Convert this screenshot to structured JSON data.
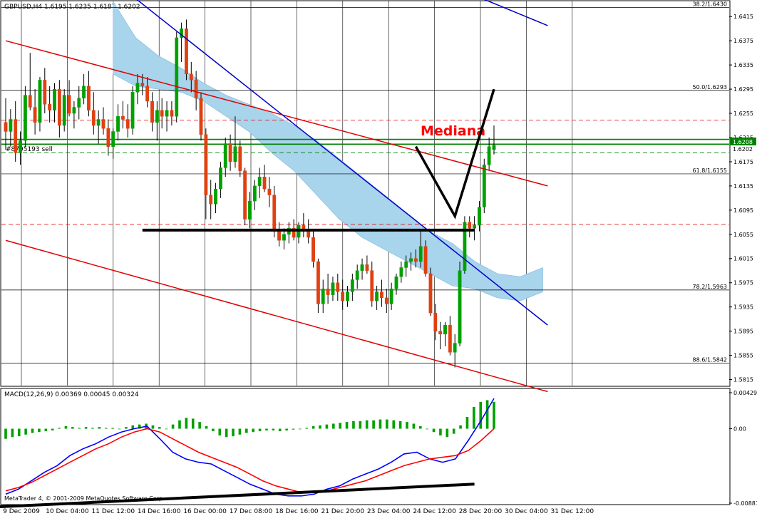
{
  "window": {
    "title": "GBPUSD,H4  1.6195 1.6235 1.6187 1.6202",
    "watermark": "MetaTrader 4, © 2001-2009 MetaQuotes Software Corp."
  },
  "colors": {
    "bull": "#00a000",
    "bear": "#e04010",
    "cloud": "#a8d4ec",
    "channel": "#e00000",
    "trend": "#0000c8",
    "fib": "#000000",
    "hline_green": "#008000",
    "macd_line": "#0000ff",
    "signal_line": "#ff0000",
    "annotation": "#ff0000"
  },
  "chart_data": [
    {
      "type": "line",
      "title": "GBPUSD,H4",
      "ylim": [
        1.5805,
        1.644
      ],
      "ticks": [
        "1.6415",
        "1.6375",
        "1.6335",
        "1.6295",
        "1.6255",
        "1.6215",
        "1.6175",
        "1.6135",
        "1.6095",
        "1.6055",
        "1.6015",
        "1.5975",
        "1.5935",
        "1.5895",
        "1.5855",
        "1.5815"
      ],
      "xticks": [
        "9 Dec 2009",
        "10 Dec 04:00",
        "11 Dec 12:00",
        "14 Dec 16:00",
        "16 Dec 00:00",
        "17 Dec 08:00",
        "18 Dec 16:00",
        "21 Dec 20:00",
        "23 Dec 04:00",
        "24 Dec 12:00",
        "28 Dec 20:00",
        "30 Dec 04:00",
        "31 Dec 12:00"
      ],
      "candles": [
        [
          1.624,
          1.628,
          1.6195,
          1.6225
        ],
        [
          1.6225,
          1.6262,
          1.62,
          1.6245
        ],
        [
          1.6245,
          1.6275,
          1.6175,
          1.619
        ],
        [
          1.619,
          1.6225,
          1.617,
          1.621
        ],
        [
          1.621,
          1.63,
          1.62,
          1.6285
        ],
        [
          1.6285,
          1.6355,
          1.626,
          1.6265
        ],
        [
          1.6265,
          1.6295,
          1.622,
          1.624
        ],
        [
          1.624,
          1.6315,
          1.6225,
          1.631
        ],
        [
          1.631,
          1.633,
          1.6255,
          1.627
        ],
        [
          1.627,
          1.63,
          1.624,
          1.626
        ],
        [
          1.626,
          1.6305,
          1.624,
          1.6295
        ],
        [
          1.6295,
          1.631,
          1.6215,
          1.6235
        ],
        [
          1.6235,
          1.6295,
          1.6225,
          1.6285
        ],
        [
          1.6285,
          1.631,
          1.625,
          1.6255
        ],
        [
          1.6255,
          1.6275,
          1.623,
          1.6265
        ],
        [
          1.6265,
          1.63,
          1.6245,
          1.628
        ],
        [
          1.628,
          1.632,
          1.627,
          1.63
        ],
        [
          1.63,
          1.6325,
          1.625,
          1.626
        ],
        [
          1.626,
          1.629,
          1.622,
          1.6235
        ],
        [
          1.6235,
          1.626,
          1.6205,
          1.6245
        ],
        [
          1.6245,
          1.6265,
          1.622,
          1.623
        ],
        [
          1.623,
          1.6245,
          1.6185,
          1.62
        ],
        [
          1.62,
          1.623,
          1.618,
          1.6225
        ],
        [
          1.6225,
          1.627,
          1.621,
          1.625
        ],
        [
          1.625,
          1.6275,
          1.623,
          1.6245
        ],
        [
          1.6245,
          1.627,
          1.6215,
          1.623
        ],
        [
          1.623,
          1.63,
          1.622,
          1.629
        ],
        [
          1.629,
          1.632,
          1.627,
          1.6305
        ],
        [
          1.6305,
          1.632,
          1.6285,
          1.63
        ],
        [
          1.63,
          1.6315,
          1.6265,
          1.6275
        ],
        [
          1.6275,
          1.629,
          1.6225,
          1.624
        ],
        [
          1.624,
          1.6275,
          1.621,
          1.626
        ],
        [
          1.626,
          1.628,
          1.623,
          1.625
        ],
        [
          1.625,
          1.6275,
          1.6225,
          1.626
        ],
        [
          1.626,
          1.6275,
          1.6235,
          1.625
        ],
        [
          1.625,
          1.639,
          1.624,
          1.638
        ],
        [
          1.638,
          1.6405,
          1.634,
          1.6395
        ],
        [
          1.6395,
          1.641,
          1.631,
          1.632
        ],
        [
          1.632,
          1.634,
          1.629,
          1.631
        ],
        [
          1.631,
          1.6325,
          1.626,
          1.628
        ],
        [
          1.628,
          1.629,
          1.621,
          1.622
        ],
        [
          1.622,
          1.623,
          1.608,
          1.612
        ],
        [
          1.612,
          1.6145,
          1.608,
          1.6105
        ],
        [
          1.6105,
          1.614,
          1.609,
          1.613
        ],
        [
          1.613,
          1.6175,
          1.6115,
          1.6165
        ],
        [
          1.6165,
          1.6215,
          1.615,
          1.6205
        ],
        [
          1.6205,
          1.622,
          1.616,
          1.6175
        ],
        [
          1.6175,
          1.625,
          1.6165,
          1.62
        ],
        [
          1.62,
          1.621,
          1.615,
          1.616
        ],
        [
          1.616,
          1.6165,
          1.607,
          1.608
        ],
        [
          1.608,
          1.6125,
          1.6065,
          1.611
        ],
        [
          1.611,
          1.6145,
          1.6095,
          1.6135
        ],
        [
          1.6135,
          1.6165,
          1.6115,
          1.615
        ],
        [
          1.615,
          1.617,
          1.6125,
          1.613
        ],
        [
          1.613,
          1.615,
          1.61,
          1.612
        ],
        [
          1.612,
          1.6135,
          1.605,
          1.606
        ],
        [
          1.606,
          1.6075,
          1.6035,
          1.6045
        ],
        [
          1.6045,
          1.6065,
          1.603,
          1.6055
        ],
        [
          1.6055,
          1.6075,
          1.604,
          1.6065
        ],
        [
          1.6065,
          1.608,
          1.6045,
          1.605
        ],
        [
          1.605,
          1.6075,
          1.604,
          1.607
        ],
        [
          1.607,
          1.609,
          1.605,
          1.606
        ],
        [
          1.606,
          1.608,
          1.604,
          1.605
        ],
        [
          1.605,
          1.606,
          1.6,
          1.601
        ],
        [
          1.601,
          1.6015,
          1.5925,
          1.594
        ],
        [
          1.594,
          1.598,
          1.5925,
          1.5965
        ],
        [
          1.5965,
          1.599,
          1.594,
          1.5955
        ],
        [
          1.5955,
          1.5985,
          1.5945,
          1.5975
        ],
        [
          1.5975,
          1.599,
          1.5945,
          1.596
        ],
        [
          1.596,
          1.598,
          1.593,
          1.5945
        ],
        [
          1.5945,
          1.597,
          1.5935,
          1.596
        ],
        [
          1.596,
          1.599,
          1.5945,
          1.598
        ],
        [
          1.598,
          1.6005,
          1.5965,
          1.5995
        ],
        [
          1.5995,
          1.6015,
          1.598,
          1.6005
        ],
        [
          1.6005,
          1.602,
          1.599,
          1.5995
        ],
        [
          1.5995,
          1.601,
          1.5935,
          1.5945
        ],
        [
          1.5945,
          1.597,
          1.593,
          1.596
        ],
        [
          1.596,
          1.598,
          1.5935,
          1.595
        ],
        [
          1.595,
          1.5965,
          1.5925,
          1.594
        ],
        [
          1.594,
          1.5975,
          1.593,
          1.5965
        ],
        [
          1.5965,
          1.599,
          1.5955,
          1.5985
        ],
        [
          1.5985,
          1.601,
          1.5975,
          1.6
        ],
        [
          1.6,
          1.602,
          1.5985,
          1.601
        ],
        [
          1.601,
          1.6025,
          1.5995,
          1.6015
        ],
        [
          1.6015,
          1.603,
          1.6,
          1.601
        ],
        [
          1.601,
          1.606,
          1.6,
          1.6035
        ],
        [
          1.6035,
          1.6045,
          1.5985,
          1.599
        ],
        [
          1.599,
          1.6,
          1.592,
          1.5925
        ],
        [
          1.5925,
          1.594,
          1.588,
          1.5895
        ],
        [
          1.5895,
          1.591,
          1.5865,
          1.589
        ],
        [
          1.589,
          1.591,
          1.587,
          1.5905
        ],
        [
          1.5905,
          1.592,
          1.5855,
          1.586
        ],
        [
          1.586,
          1.589,
          1.5835,
          1.5875
        ],
        [
          1.5875,
          1.601,
          1.587,
          1.5995
        ],
        [
          1.5995,
          1.6085,
          1.599,
          1.6075
        ],
        [
          1.6075,
          1.6085,
          1.605,
          1.6065
        ],
        [
          1.6065,
          1.6085,
          1.6045,
          1.607
        ],
        [
          1.607,
          1.611,
          1.606,
          1.61
        ],
        [
          1.61,
          1.618,
          1.609,
          1.617
        ],
        [
          1.617,
          1.6215,
          1.616,
          1.62
        ],
        [
          1.6195,
          1.6235,
          1.6187,
          1.6202
        ]
      ],
      "cloud_upper": [
        1.644,
        1.638,
        1.635,
        1.633,
        1.6305,
        1.6285,
        1.627,
        1.6255,
        1.6235,
        1.621,
        1.618,
        1.615,
        1.612,
        1.609,
        1.606,
        1.604,
        1.601,
        1.599,
        1.5985,
        1.6
      ],
      "cloud_lower": [
        1.632,
        1.63,
        1.6295,
        1.629,
        1.6275,
        1.625,
        1.6225,
        1.619,
        1.616,
        1.612,
        1.608,
        1.605,
        1.603,
        1.601,
        1.599,
        1.597,
        1.5965,
        1.595,
        1.5945,
        1.596
      ],
      "trendlines": [
        {
          "color": "channel",
          "points": [
            [
              0,
              1.6375
            ],
            [
              111,
              1.6135
            ]
          ]
        },
        {
          "color": "channel",
          "points": [
            [
              0,
              1.6045
            ],
            [
              111,
              1.5795
            ]
          ]
        },
        {
          "color": "trend",
          "points": [
            [
              25,
              1.6455
            ],
            [
              111,
              1.5905
            ]
          ]
        },
        {
          "color": "trend",
          "points": [
            [
              96,
              1.645
            ],
            [
              111,
              1.64
            ]
          ]
        }
      ],
      "black_line": [
        [
          28,
          1.6062
        ],
        [
          96,
          1.6062
        ]
      ],
      "zigzag": [
        [
          84,
          1.62
        ],
        [
          92,
          1.6085
        ],
        [
          100,
          1.6295
        ]
      ],
      "fib_levels": [
        {
          "value": 1.643,
          "label": "38.2/1.6430"
        },
        {
          "value": 1.6293,
          "label": "50.0/1.6293"
        },
        {
          "value": 1.6155,
          "label": "61.8/1.6155"
        },
        {
          "value": 1.5963,
          "label": "78.2/1.5963"
        },
        {
          "value": 1.5842,
          "label": "88.6/1.5842"
        }
      ],
      "red_dashed": [
        1.6244,
        1.6072
      ],
      "green_lines": [
        1.6212,
        1.6204
      ],
      "green_dashed": 1.619,
      "current_price": "1.6208",
      "bid_price": "1.6202",
      "order_label": "#8795193 sell",
      "annotation": "Mediana"
    },
    {
      "type": "bar",
      "title": "MACD(12,26,9) 0.00369 0.00045 0.00324",
      "ylim": [
        -0.00887,
        0.00429
      ],
      "ticks": [
        "0.00429",
        "0.00",
        "-0.00887"
      ],
      "histogram": [
        -0.0012,
        -0.001,
        -0.0009,
        -0.0007,
        -0.0005,
        -0.0004,
        -0.0003,
        -0.0002,
        0.0001,
        0.0003,
        0.0002,
        0.0001,
        0.0002,
        0.0001,
        0.0002,
        0.0001,
        0.0001,
        0.0,
        0.0002,
        0.0004,
        0.0005,
        0.0006,
        0.0004,
        0.0002,
        0.0,
        0.0005,
        0.001,
        0.0013,
        0.0012,
        0.0008,
        0.0003,
        -0.0003,
        -0.0008,
        -0.001,
        -0.0009,
        -0.0007,
        -0.0005,
        -0.0004,
        -0.0003,
        -0.0002,
        -0.0002,
        -0.0003,
        -0.0002,
        -0.0001,
        0.0,
        0.0001,
        0.0003,
        0.0004,
        0.0005,
        0.0006,
        0.0007,
        0.0008,
        0.0009,
        0.0009,
        0.001,
        0.001,
        0.0011,
        0.0011,
        0.001,
        0.0009,
        0.0008,
        0.0006,
        0.0003,
        0.0,
        -0.0004,
        -0.0008,
        -0.001,
        -0.0006,
        0.0004,
        0.0014,
        0.0026,
        0.0032,
        0.0034,
        0.0032
      ],
      "macd": [
        -0.0078,
        -0.0072,
        -0.0062,
        -0.0052,
        -0.0044,
        -0.0032,
        -0.0024,
        -0.0018,
        -0.001,
        -0.0004,
        0.0,
        0.0003,
        -0.0012,
        -0.0028,
        -0.0036,
        -0.004,
        -0.0042,
        -0.005,
        -0.0058,
        -0.0066,
        -0.0072,
        -0.0078,
        -0.008,
        -0.008,
        -0.0078,
        -0.0072,
        -0.0068,
        -0.006,
        -0.0054,
        -0.0048,
        -0.004,
        -0.003,
        -0.0028,
        -0.0036,
        -0.004,
        -0.0036,
        -0.0014,
        0.001,
        0.0036
      ],
      "signal": [
        -0.0074,
        -0.007,
        -0.0064,
        -0.0056,
        -0.0048,
        -0.004,
        -0.0032,
        -0.0024,
        -0.0018,
        -0.001,
        -0.0004,
        0.0,
        -0.0004,
        -0.0012,
        -0.002,
        -0.0028,
        -0.0034,
        -0.004,
        -0.0046,
        -0.0054,
        -0.0062,
        -0.0068,
        -0.0072,
        -0.0076,
        -0.0076,
        -0.0074,
        -0.007,
        -0.0066,
        -0.0062,
        -0.0056,
        -0.005,
        -0.0044,
        -0.004,
        -0.0036,
        -0.0034,
        -0.0032,
        -0.0026,
        -0.0014,
        0.0
      ],
      "support_line": [
        [
          0,
          -0.0093
        ],
        [
          96,
          -0.0066
        ]
      ]
    }
  ]
}
